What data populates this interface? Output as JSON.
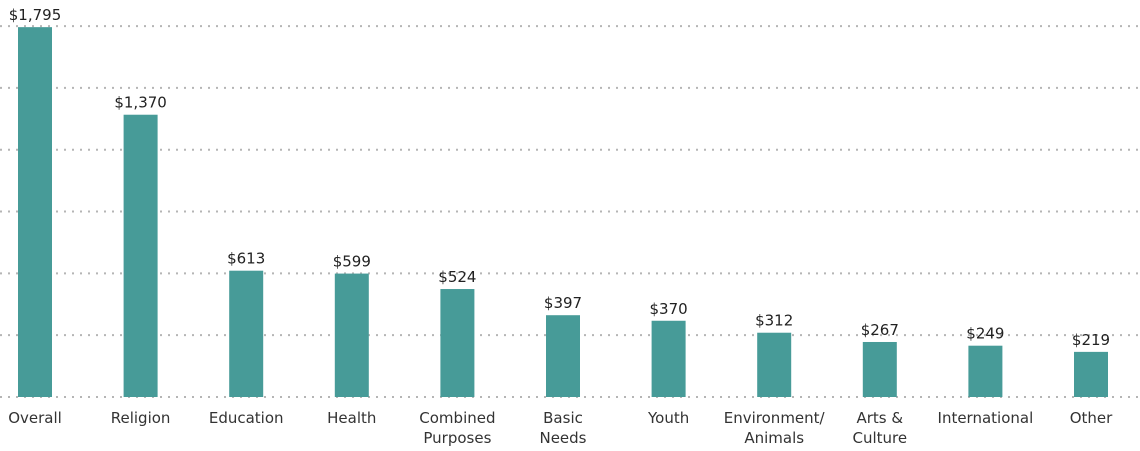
{
  "chart_data": {
    "type": "bar",
    "categories": [
      "Overall",
      "Religion",
      "Education",
      "Health",
      "Combined\nPurposes",
      "Basic\nNeeds",
      "Youth",
      "Environment/\nAnimals",
      "Arts &\nCulture",
      "International",
      "Other"
    ],
    "values": [
      1795,
      1370,
      613,
      599,
      524,
      397,
      370,
      312,
      267,
      249,
      219
    ],
    "value_labels": [
      "$1,795",
      "$1,370",
      "$613",
      "$599",
      "$524",
      "$397",
      "$370",
      "$312",
      "$267",
      "$249",
      "$219"
    ],
    "color": "#479b98",
    "ylim": [
      0,
      1820
    ],
    "yticks": [
      0,
      300,
      600,
      900,
      1200,
      1500,
      1800
    ],
    "grid": true
  }
}
